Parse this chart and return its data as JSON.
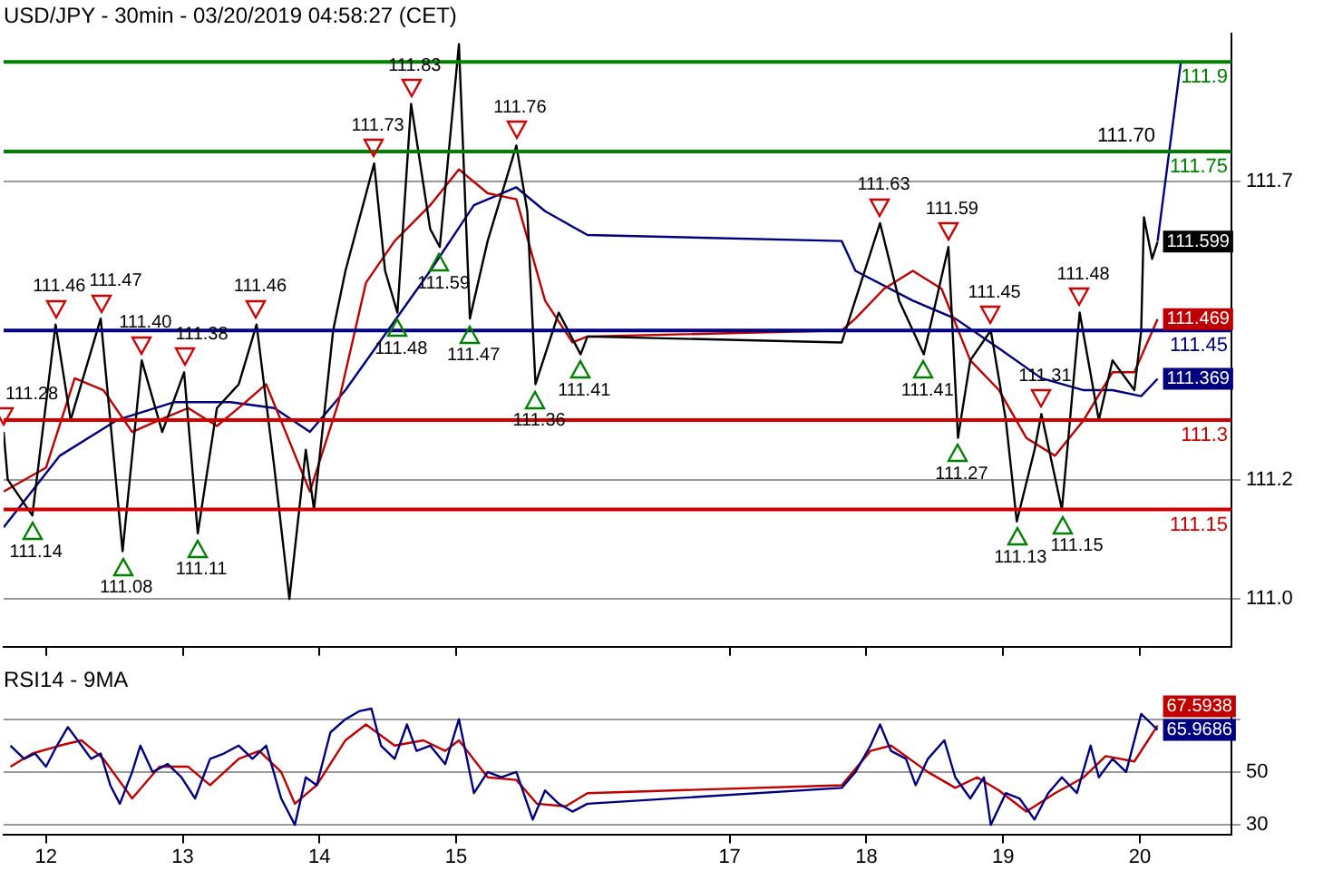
{
  "chart_data": [
    {
      "type": "line",
      "title": "USD/JPY - 30min - 03/20/2019 04:58:27 (CET)",
      "xlim": [
        11.69,
        20.67
      ],
      "xticks": [
        12,
        13,
        14,
        15,
        17,
        18,
        19,
        20
      ],
      "ylim": [
        110.92,
        111.948
      ],
      "yticks": [
        {
          "value": 111,
          "label": "111.0"
        },
        111.2,
        111.7
      ],
      "tick_labels": "y",
      "grid": "y",
      "legend": false,
      "marker": "none",
      "line_style": "solid",
      "series": [
        {
          "color": "#000000",
          "x": [
            11.69,
            11.72,
            11.9,
            12.07,
            12.18,
            12.4,
            12.56,
            12.7,
            12.85,
            13.01,
            13.11,
            13.25,
            13.41,
            13.54,
            13.67,
            13.78,
            13.9,
            13.96,
            14.1,
            14.19,
            14.4,
            14.48,
            14.57,
            14.67,
            14.81,
            14.88,
            15.02,
            15.1,
            15.23,
            15.44,
            15.52,
            15.58,
            15.75,
            15.91,
            15.96,
            17.82,
            18.1,
            18.24,
            18.42,
            18.6,
            18.67,
            18.76,
            18.91,
            19.02,
            19.1,
            19.23,
            19.28,
            19.43,
            19.56,
            19.7,
            19.8,
            19.96,
            20.01,
            20.03,
            20.09,
            20.13
          ],
          "values": [
            111.28,
            111.2,
            111.14,
            111.46,
            111.3,
            111.47,
            111.08,
            111.4,
            111.28,
            111.38,
            111.11,
            111.32,
            111.36,
            111.46,
            111.22,
            111.0,
            111.25,
            111.15,
            111.45,
            111.55,
            111.73,
            111.55,
            111.48,
            111.83,
            111.62,
            111.59,
            111.93,
            111.47,
            111.6,
            111.76,
            111.65,
            111.36,
            111.48,
            111.41,
            111.44,
            111.43,
            111.63,
            111.5,
            111.41,
            111.59,
            111.27,
            111.4,
            111.45,
            111.3,
            111.13,
            111.25,
            111.31,
            111.15,
            111.48,
            111.3,
            111.4,
            111.35,
            111.45,
            111.64,
            111.57,
            111.599
          ],
          "value_labels": [
            null,
            null,
            null,
            null,
            null,
            null,
            null,
            null,
            null,
            null,
            null,
            null,
            null,
            null,
            null,
            null,
            null,
            null,
            null,
            null,
            null,
            null,
            null,
            null,
            null,
            null,
            null,
            null,
            null,
            null,
            null,
            null,
            null,
            null,
            null,
            null,
            null,
            null,
            null,
            null,
            null,
            null,
            null,
            null,
            null,
            null,
            null,
            null,
            null,
            null,
            null,
            null,
            null,
            null,
            null,
            "111.599"
          ]
        },
        {
          "color": "#c00000",
          "x": [
            11.69,
            12.0,
            12.21,
            12.42,
            12.63,
            12.83,
            13.04,
            13.25,
            13.46,
            13.61,
            13.77,
            13.93,
            14.14,
            14.34,
            14.55,
            14.81,
            15.02,
            15.23,
            15.44,
            15.65,
            15.85,
            15.96,
            17.82,
            17.92,
            18.13,
            18.34,
            18.55,
            18.76,
            18.97,
            19.17,
            19.38,
            19.59,
            19.8,
            19.96,
            20.13
          ],
          "values": [
            111.18,
            111.22,
            111.37,
            111.35,
            111.28,
            111.3,
            111.32,
            111.29,
            111.33,
            111.36,
            111.27,
            111.18,
            111.33,
            111.53,
            111.6,
            111.66,
            111.72,
            111.68,
            111.67,
            111.5,
            111.43,
            111.44,
            111.45,
            111.47,
            111.52,
            111.55,
            111.52,
            111.4,
            111.35,
            111.27,
            111.24,
            111.3,
            111.38,
            111.38,
            111.469
          ],
          "value_labels": [
            null,
            null,
            null,
            null,
            null,
            null,
            null,
            null,
            null,
            null,
            null,
            null,
            null,
            null,
            null,
            null,
            null,
            null,
            null,
            null,
            null,
            null,
            null,
            null,
            null,
            null,
            null,
            null,
            null,
            null,
            null,
            null,
            null,
            null,
            "111.469"
          ]
        },
        {
          "color": "#000080",
          "x": [
            11.69,
            12.1,
            12.52,
            12.94,
            13.35,
            13.67,
            13.93,
            14.19,
            14.5,
            14.81,
            15.13,
            15.44,
            15.65,
            15.96,
            17.82,
            17.92,
            18.34,
            18.65,
            18.97,
            19.28,
            19.59,
            19.8,
            20.01,
            20.13
          ],
          "values": [
            111.12,
            111.24,
            111.3,
            111.33,
            111.33,
            111.32,
            111.28,
            111.35,
            111.45,
            111.55,
            111.66,
            111.69,
            111.65,
            111.61,
            111.6,
            111.55,
            111.5,
            111.47,
            111.42,
            111.37,
            111.35,
            111.35,
            111.34,
            111.369
          ],
          "value_labels": [
            null,
            null,
            null,
            null,
            null,
            null,
            null,
            null,
            null,
            null,
            null,
            null,
            null,
            null,
            null,
            null,
            null,
            null,
            null,
            null,
            null,
            null,
            null,
            "111.369"
          ]
        },
        {
          "color": "#000080",
          "x": [
            20.13,
            20.3
          ],
          "values": [
            111.6,
            111.9
          ]
        }
      ],
      "ref_lines": [
        {
          "axis": "y",
          "value": 111.9,
          "label": "111.9",
          "color": "#008000"
        },
        {
          "axis": "y",
          "value": 111.75,
          "label": "111.75",
          "color": "#008000"
        },
        {
          "axis": "y",
          "value": 111.45,
          "label": "111.45",
          "color": "#000080"
        },
        {
          "axis": "y",
          "value": 111.3,
          "label": "111.3",
          "color": "#d00000"
        },
        {
          "axis": "y",
          "value": 111.15,
          "label": "111.15",
          "color": "#d00000"
        }
      ],
      "annotations": [
        {
          "text": "111.28",
          "x": 11.69,
          "y": 111.28
        },
        {
          "text": "111.14",
          "x": 11.9,
          "y": 111.14
        },
        {
          "text": "111.46",
          "x": 12.07,
          "y": 111.46
        },
        {
          "text": "111.47",
          "x": 12.4,
          "y": 111.47
        },
        {
          "text": "111.08",
          "x": 12.56,
          "y": 111.08
        },
        {
          "text": "111.40",
          "x": 12.7,
          "y": 111.4
        },
        {
          "text": "111.38",
          "x": 13.01,
          "y": 111.38
        },
        {
          "text": "111.11",
          "x": 13.11,
          "y": 111.11
        },
        {
          "text": "111.46",
          "x": 13.54,
          "y": 111.46
        },
        {
          "text": "111.73",
          "x": 14.4,
          "y": 111.73
        },
        {
          "text": "111.48",
          "x": 14.57,
          "y": 111.48
        },
        {
          "text": "111.83",
          "x": 14.67,
          "y": 111.83
        },
        {
          "text": "111.59",
          "x": 14.88,
          "y": 111.59
        },
        {
          "text": "111.47",
          "x": 15.1,
          "y": 111.47
        },
        {
          "text": "111.76",
          "x": 15.44,
          "y": 111.76
        },
        {
          "text": "111.36",
          "x": 15.58,
          "y": 111.36
        },
        {
          "text": "111.41",
          "x": 15.91,
          "y": 111.41
        },
        {
          "text": "111.63",
          "x": 18.1,
          "y": 111.63
        },
        {
          "text": "111.41",
          "x": 18.42,
          "y": 111.41
        },
        {
          "text": "111.59",
          "x": 18.6,
          "y": 111.59
        },
        {
          "text": "111.27",
          "x": 18.67,
          "y": 111.27
        },
        {
          "text": "111.45",
          "x": 18.91,
          "y": 111.45
        },
        {
          "text": "111.13",
          "x": 19.1,
          "y": 111.13
        },
        {
          "text": "111.31",
          "x": 19.28,
          "y": 111.31
        },
        {
          "text": "111.15",
          "x": 19.43,
          "y": 111.15
        },
        {
          "text": "111.48",
          "x": 19.56,
          "y": 111.48
        },
        "111.70"
      ]
    },
    {
      "type": "line",
      "title": "RSI14 - 9MA",
      "xlim": [
        11.69,
        20.67
      ],
      "xticks": [
        12,
        13,
        14,
        15,
        17,
        18,
        19,
        20
      ],
      "ylim": [
        26.4,
        78.2
      ],
      "yticks": [
        30,
        50,
        {
          "value": 70,
          "label": null
        }
      ],
      "grid": "y",
      "legend": false,
      "marker": "none",
      "line_style": "solid",
      "series": [
        {
          "color": "#000080",
          "x": [
            11.74,
            11.84,
            11.92,
            12.0,
            12.08,
            12.16,
            12.26,
            12.33,
            12.4,
            12.47,
            12.54,
            12.63,
            12.69,
            12.78,
            12.89,
            12.99,
            13.09,
            13.2,
            13.3,
            13.41,
            13.51,
            13.61,
            13.72,
            13.77,
            13.82,
            13.9,
            13.98,
            14.08,
            14.19,
            14.29,
            14.38,
            14.45,
            14.55,
            14.64,
            14.71,
            14.81,
            14.92,
            15.02,
            15.13,
            15.23,
            15.33,
            15.44,
            15.56,
            15.65,
            15.75,
            15.85,
            15.96,
            17.82,
            17.92,
            18.03,
            18.1,
            18.18,
            18.29,
            18.36,
            18.45,
            18.57,
            18.65,
            18.76,
            18.86,
            18.91,
            19.02,
            19.12,
            19.23,
            19.33,
            19.43,
            19.54,
            19.64,
            19.7,
            19.8,
            19.9,
            20.01,
            20.09,
            20.13
          ],
          "values": [
            60,
            55,
            57,
            52,
            60,
            67,
            60,
            55,
            57,
            45,
            38,
            50,
            60,
            50,
            53,
            48,
            40,
            55,
            57,
            60,
            55,
            60,
            40,
            35,
            30,
            48,
            45,
            65,
            70,
            73,
            74,
            60,
            55,
            68,
            58,
            60,
            53,
            70,
            42,
            50,
            48,
            50,
            32,
            43,
            38,
            35,
            38,
            44,
            50,
            60,
            68,
            58,
            55,
            45,
            55,
            62,
            48,
            40,
            48,
            30,
            42,
            40,
            32,
            42,
            48,
            42,
            60,
            48,
            55,
            50,
            72,
            68,
            65.9686
          ],
          "value_labels": [
            null,
            null,
            null,
            null,
            null,
            null,
            null,
            null,
            null,
            null,
            null,
            null,
            null,
            null,
            null,
            null,
            null,
            null,
            null,
            null,
            null,
            null,
            null,
            null,
            null,
            null,
            null,
            null,
            null,
            null,
            null,
            null,
            null,
            null,
            null,
            null,
            null,
            null,
            null,
            null,
            null,
            null,
            null,
            null,
            null,
            null,
            null,
            null,
            null,
            null,
            null,
            null,
            null,
            null,
            null,
            null,
            null,
            null,
            null,
            null,
            null,
            null,
            null,
            null,
            null,
            null,
            null,
            null,
            null,
            null,
            null,
            null,
            "65.9686"
          ]
        },
        {
          "color": "#c00000",
          "x": [
            11.74,
            11.9,
            12.1,
            12.26,
            12.42,
            12.63,
            12.83,
            13.04,
            13.2,
            13.41,
            13.56,
            13.72,
            13.82,
            13.98,
            14.19,
            14.34,
            14.55,
            14.76,
            14.92,
            15.02,
            15.23,
            15.44,
            15.59,
            15.8,
            15.96,
            17.82,
            18.03,
            18.18,
            18.45,
            18.65,
            18.81,
            18.97,
            19.17,
            19.38,
            19.59,
            19.75,
            19.96,
            20.13
          ],
          "values": [
            52,
            57,
            60,
            62,
            55,
            40,
            52,
            52,
            45,
            55,
            58,
            50,
            38,
            45,
            62,
            68,
            60,
            62,
            58,
            62,
            48,
            47,
            38,
            37,
            42,
            45,
            58,
            60,
            50,
            44,
            48,
            43,
            35,
            42,
            48,
            56,
            54,
            67.5938
          ],
          "value_labels": [
            null,
            null,
            null,
            null,
            null,
            null,
            null,
            null,
            null,
            null,
            null,
            null,
            null,
            null,
            null,
            null,
            null,
            null,
            null,
            null,
            null,
            null,
            null,
            null,
            null,
            null,
            null,
            null,
            null,
            null,
            null,
            null,
            null,
            null,
            null,
            null,
            null,
            "67.5938"
          ]
        }
      ]
    }
  ]
}
